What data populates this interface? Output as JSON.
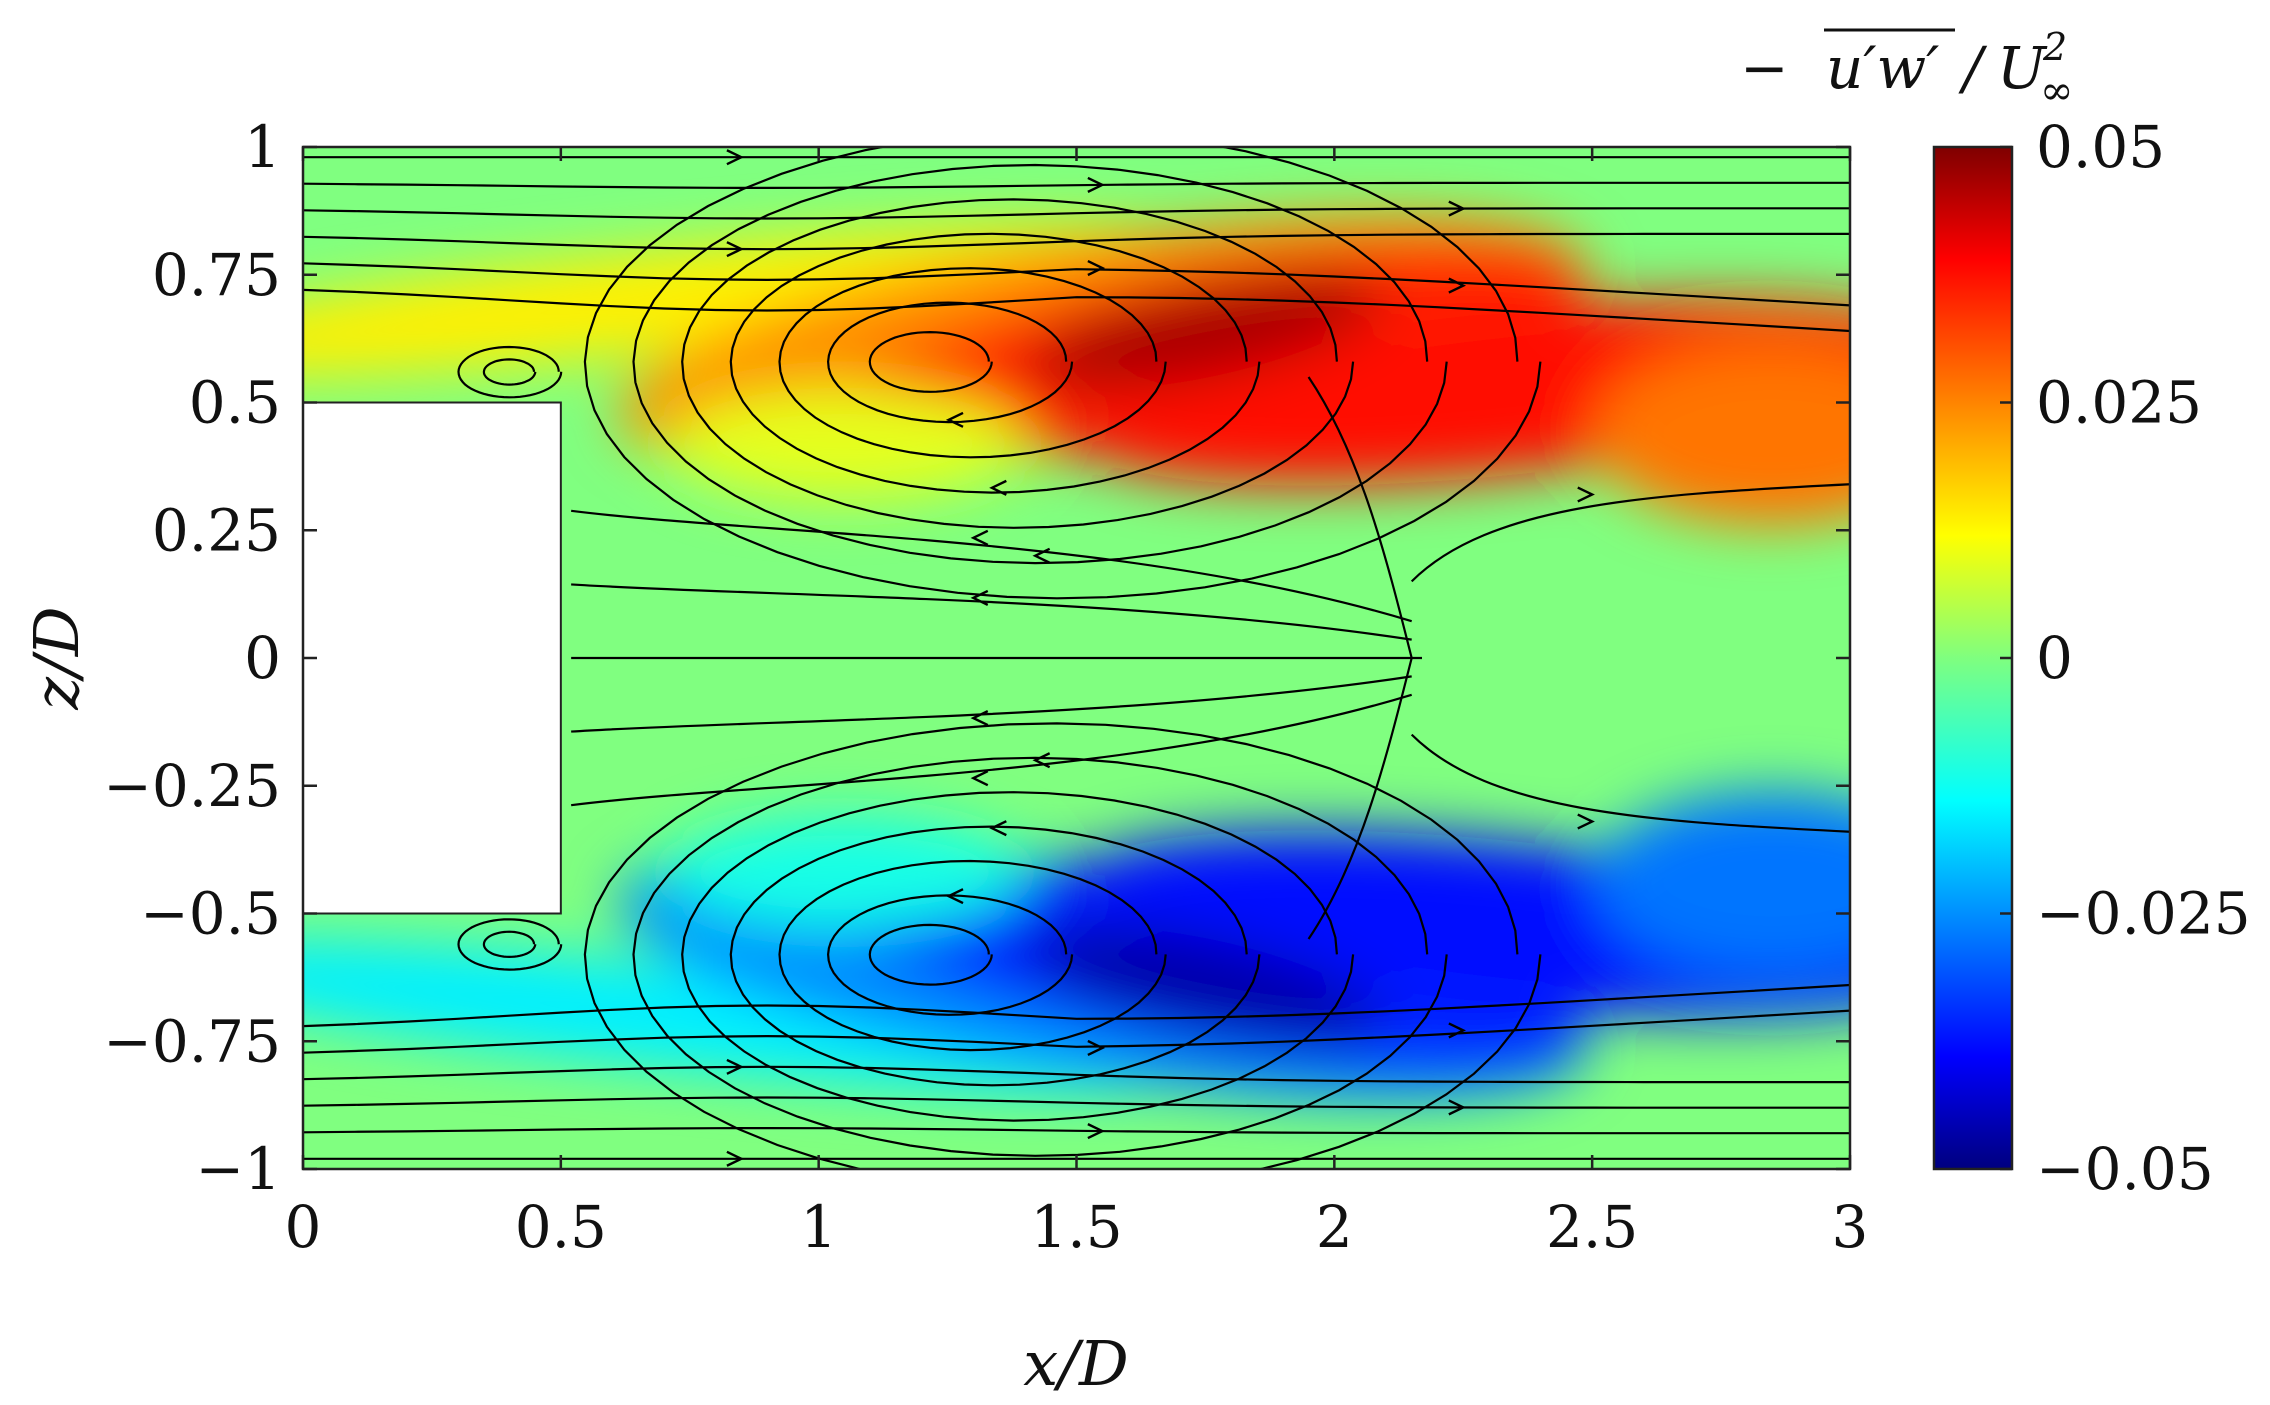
{
  "chart_data": {
    "type": "heatmap",
    "title": "",
    "xlabel": "x/D",
    "ylabel": "z/D",
    "xlim": [
      0,
      3
    ],
    "ylim": [
      -1,
      1
    ],
    "xticks": [
      0,
      0.5,
      1,
      1.5,
      2,
      2.5,
      3
    ],
    "yticks": [
      -1,
      -0.75,
      -0.5,
      -0.25,
      0,
      0.25,
      0.5,
      0.75,
      1
    ],
    "xtick_labels": [
      "0",
      "0.5",
      "1",
      "1.5",
      "2",
      "2.5",
      "3"
    ],
    "ytick_labels": [
      "−1",
      "−0.75",
      "−0.5",
      "−0.25",
      "0",
      "0.25",
      "0.5",
      "0.75",
      "1"
    ],
    "colorbar": {
      "label": "−u'w'/U∞²",
      "label_parts": {
        "prefix": "−",
        "overline": "u′w′",
        "slash": "/",
        "base": "U",
        "sub": "∞",
        "sup": "2"
      },
      "lim": [
        -0.05,
        0.05
      ],
      "ticks": [
        -0.05,
        -0.025,
        0,
        0.025,
        0.05
      ],
      "tick_labels": [
        "−0.05",
        "−0.025",
        "0",
        "0.025",
        "0.05"
      ],
      "colormap": "jet"
    },
    "field": {
      "description_free": true,
      "extrema": [
        {
          "x": 1.65,
          "z": 0.65,
          "value": 0.05
        },
        {
          "x": 1.65,
          "z": -0.65,
          "value": -0.05
        }
      ]
    },
    "body": {
      "x_range": [
        0,
        0.5
      ],
      "z_range": [
        -0.5,
        0.5
      ],
      "color": "#ffffff"
    },
    "vortices": [
      {
        "x": 1.18,
        "z": 0.58
      },
      {
        "x": 1.18,
        "z": -0.58
      },
      {
        "x": 0.4,
        "z": 0.56
      },
      {
        "x": 0.4,
        "z": -0.56
      }
    ],
    "grid": false,
    "legend": "none"
  }
}
